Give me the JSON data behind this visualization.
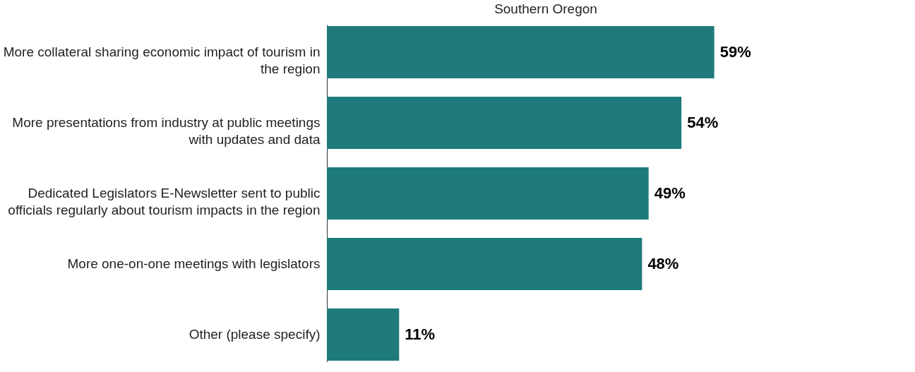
{
  "chart_data": {
    "type": "bar",
    "orientation": "horizontal",
    "title": "Southern Oregon",
    "categories": [
      "More collateral sharing economic impact of tourism in the region",
      "More presentations from industry at public meetings with updates and data",
      "Dedicated Legislators E-Newsletter sent to public officials regularly about tourism impacts in the region",
      "More one-on-one meetings with legislators",
      "Other (please specify)"
    ],
    "values": [
      59,
      54,
      49,
      48,
      11
    ],
    "value_labels": [
      "59%",
      "54%",
      "49%",
      "48%",
      "11%"
    ],
    "color": "#1f7b7b",
    "grid": false
  }
}
